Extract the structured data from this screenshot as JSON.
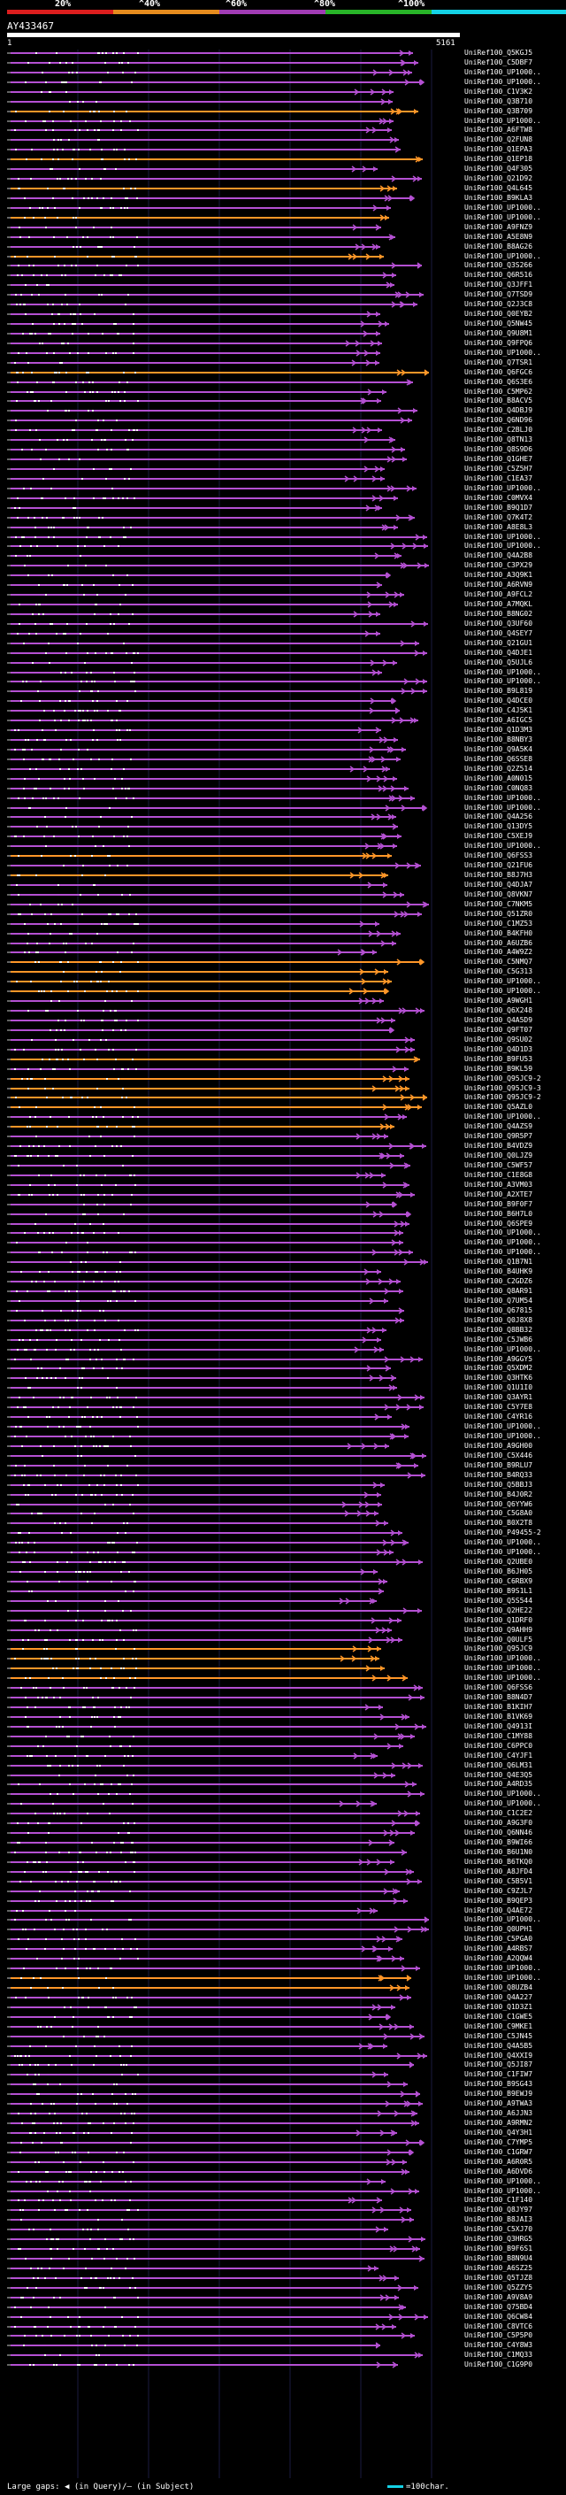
{
  "scale": {
    "labels": [
      "20%",
      "^40%",
      "^60%",
      "^80%",
      "^100%"
    ],
    "colors": [
      "#dc1e1e",
      "#e68c1e",
      "#a03cb4",
      "#28b428",
      "#14d2e6"
    ]
  },
  "query": {
    "id": "AY433467",
    "start": "1",
    "end": "5161"
  },
  "colors": {
    "purple": "#b450d2",
    "orange": "#ff9628",
    "gap": "#646464",
    "tick": "#ffffff"
  },
  "footer": {
    "text": "Large gaps: ◀ (in Query)/— (in Subject)",
    "legend": "=100char."
  },
  "hits": [
    {
      "id": "UniRef100_Q5KGJ5",
      "c": "p"
    },
    {
      "id": "UniRef100_C5DBF7",
      "c": "p"
    },
    {
      "id": "UniRef100_UP1000..",
      "c": "p"
    },
    {
      "id": "UniRef100_UP1000..",
      "c": "p"
    },
    {
      "id": "UniRef100_C1V3K2",
      "c": "p"
    },
    {
      "id": "UniRef100_Q3B710",
      "c": "p"
    },
    {
      "id": "UniRef100_Q3B709",
      "c": "o"
    },
    {
      "id": "UniRef100_UP1000..",
      "c": "p"
    },
    {
      "id": "UniRef100_A6FTW8",
      "c": "p"
    },
    {
      "id": "UniRef100_Q2FUN8",
      "c": "p"
    },
    {
      "id": "UniRef100_Q1EPA3",
      "c": "p"
    },
    {
      "id": "UniRef100_Q1EP18",
      "c": "o"
    },
    {
      "id": "UniRef100_Q4F305",
      "c": "p"
    },
    {
      "id": "UniRef100_Q21D92",
      "c": "p"
    },
    {
      "id": "UniRef100_Q4L645",
      "c": "o"
    },
    {
      "id": "UniRef100_B9KLA3",
      "c": "p"
    },
    {
      "id": "UniRef100_UP1000..",
      "c": "p"
    },
    {
      "id": "UniRef100_UP1000..",
      "c": "o"
    },
    {
      "id": "UniRef100_A9FNZ9",
      "c": "p"
    },
    {
      "id": "UniRef100_A5E8N9",
      "c": "p"
    },
    {
      "id": "UniRef100_B8AG26",
      "c": "p"
    },
    {
      "id": "UniRef100_UP1000..",
      "c": "o"
    },
    {
      "id": "UniRef100_Q3S266",
      "c": "p"
    },
    {
      "id": "UniRef100_Q6R516",
      "c": "p"
    },
    {
      "id": "UniRef100_Q3JFF1",
      "c": "p"
    },
    {
      "id": "UniRef100_Q7TSD9",
      "c": "p"
    },
    {
      "id": "UniRef100_Q2J3C8",
      "c": "p"
    },
    {
      "id": "UniRef100_Q0EYB2",
      "c": "p"
    },
    {
      "id": "UniRef100_Q5NW45",
      "c": "p"
    },
    {
      "id": "UniRef100_Q9U8M1",
      "c": "p"
    },
    {
      "id": "UniRef100_Q9FPQ6",
      "c": "p"
    },
    {
      "id": "UniRef100_UP1000..",
      "c": "p"
    },
    {
      "id": "UniRef100_Q7TSR1",
      "c": "p"
    },
    {
      "id": "UniRef100_Q6FGC6",
      "c": "o"
    },
    {
      "id": "UniRef100_Q6S3E6",
      "c": "p"
    },
    {
      "id": "UniRef100_C5MP62",
      "c": "p"
    },
    {
      "id": "UniRef100_B8ACV5",
      "c": "p"
    },
    {
      "id": "UniRef100_Q4DBJ9",
      "c": "p"
    },
    {
      "id": "UniRef100_Q6ND96",
      "c": "p"
    },
    {
      "id": "UniRef100_C2BLJ0",
      "c": "p"
    },
    {
      "id": "UniRef100_Q8TN13",
      "c": "p"
    },
    {
      "id": "UniRef100_Q8S9D6",
      "c": "p"
    },
    {
      "id": "UniRef100_Q1GHE7",
      "c": "p"
    },
    {
      "id": "UniRef100_C5Z5H7",
      "c": "p"
    },
    {
      "id": "UniRef100_C1EA37",
      "c": "p"
    },
    {
      "id": "UniRef100_UP1000..",
      "c": "p"
    },
    {
      "id": "UniRef100_C0MVX4",
      "c": "p"
    },
    {
      "id": "UniRef100_B9Q1D7",
      "c": "p"
    },
    {
      "id": "UniRef100_Q7K4T2",
      "c": "p"
    },
    {
      "id": "UniRef100_A8E8L3",
      "c": "p"
    },
    {
      "id": "UniRef100_UP1000..",
      "c": "p"
    },
    {
      "id": "UniRef100_UP1000..",
      "c": "p"
    },
    {
      "id": "UniRef100_Q4A2B8",
      "c": "p"
    },
    {
      "id": "UniRef100_C3PX29",
      "c": "p"
    },
    {
      "id": "UniRef100_A3Q9K1",
      "c": "p"
    },
    {
      "id": "UniRef100_A6RVN9",
      "c": "p"
    },
    {
      "id": "UniRef100_A9FCL2",
      "c": "p"
    },
    {
      "id": "UniRef100_A7MQKL",
      "c": "p"
    },
    {
      "id": "UniRef100_B8NG02",
      "c": "p"
    },
    {
      "id": "UniRef100_Q3UF60",
      "c": "p"
    },
    {
      "id": "UniRef100_Q4SEY7",
      "c": "p"
    },
    {
      "id": "UniRef100_Q21GU1",
      "c": "p"
    },
    {
      "id": "UniRef100_Q4DJE1",
      "c": "p"
    },
    {
      "id": "UniRef100_Q5UJL6",
      "c": "p"
    },
    {
      "id": "UniRef100_UP1000..",
      "c": "p"
    },
    {
      "id": "UniRef100_UP1000..",
      "c": "p"
    },
    {
      "id": "UniRef100_B9L819",
      "c": "p"
    },
    {
      "id": "UniRef100_Q4DCE0",
      "c": "p"
    },
    {
      "id": "UniRef100_C4J5K1",
      "c": "p"
    },
    {
      "id": "UniRef100_A6IGC5",
      "c": "p"
    },
    {
      "id": "UniRef100_Q1D3M3",
      "c": "p"
    },
    {
      "id": "UniRef100_B8NBY3",
      "c": "p"
    },
    {
      "id": "UniRef100_Q9A5K4",
      "c": "p"
    },
    {
      "id": "UniRef100_Q6SSE8",
      "c": "p"
    },
    {
      "id": "UniRef100_Q2Z514",
      "c": "p"
    },
    {
      "id": "UniRef100_A0N015",
      "c": "p"
    },
    {
      "id": "UniRef100_C0NQ83",
      "c": "p"
    },
    {
      "id": "UniRef100_UP1000..",
      "c": "p"
    },
    {
      "id": "UniRef100_UP1000..",
      "c": "p"
    },
    {
      "id": "UniRef100_Q4A256",
      "c": "p"
    },
    {
      "id": "UniRef100_Q13DY5",
      "c": "p"
    },
    {
      "id": "UniRef100_C5XEJ9",
      "c": "p"
    },
    {
      "id": "UniRef100_UP1000..",
      "c": "p"
    },
    {
      "id": "UniRef100_Q6FSS3",
      "c": "o"
    },
    {
      "id": "UniRef100_Q21FU6",
      "c": "p"
    },
    {
      "id": "UniRef100_B8J7H3",
      "c": "o"
    },
    {
      "id": "UniRef100_Q4DJA7",
      "c": "p"
    },
    {
      "id": "UniRef100_Q8VKN7",
      "c": "p"
    },
    {
      "id": "UniRef100_C7NKM5",
      "c": "p"
    },
    {
      "id": "UniRef100_Q51ZR0",
      "c": "p"
    },
    {
      "id": "UniRef100_C1MZ53",
      "c": "p"
    },
    {
      "id": "UniRef100_B4KFH0",
      "c": "p"
    },
    {
      "id": "UniRef100_A6UZB6",
      "c": "p"
    },
    {
      "id": "UniRef100_A4W9Z2",
      "c": "p"
    },
    {
      "id": "UniRef100_C5NMQ7",
      "c": "o"
    },
    {
      "id": "UniRef100_C5G313",
      "c": "o"
    },
    {
      "id": "UniRef100_UP1000..",
      "c": "o"
    },
    {
      "id": "UniRef100_UP1000..",
      "c": "o"
    },
    {
      "id": "UniRef100_A9WGH1",
      "c": "p"
    },
    {
      "id": "UniRef100_Q6X248",
      "c": "p"
    },
    {
      "id": "UniRef100_Q4A5D9",
      "c": "p"
    },
    {
      "id": "UniRef100_Q9FT07",
      "c": "p"
    },
    {
      "id": "UniRef100_Q9SU02",
      "c": "p"
    },
    {
      "id": "UniRef100_Q4D1D3",
      "c": "p"
    },
    {
      "id": "UniRef100_B9FU53",
      "c": "o"
    },
    {
      "id": "UniRef100_B9KL59",
      "c": "p"
    },
    {
      "id": "UniRef100_Q95JC9-2",
      "c": "o"
    },
    {
      "id": "UniRef100_Q95JC9-3",
      "c": "o"
    },
    {
      "id": "UniRef100_Q95JC9-2",
      "c": "o"
    },
    {
      "id": "UniRef100_Q5AZL0",
      "c": "o"
    },
    {
      "id": "UniRef100_UP1000..",
      "c": "p"
    },
    {
      "id": "UniRef100_Q4AZS9",
      "c": "o"
    },
    {
      "id": "UniRef100_Q9R5P7",
      "c": "p"
    },
    {
      "id": "UniRef100_B4VDZ9",
      "c": "p"
    },
    {
      "id": "UniRef100_Q0LJZ9",
      "c": "p"
    },
    {
      "id": "UniRef100_C5WF57",
      "c": "p"
    },
    {
      "id": "UniRef100_C1E8G8",
      "c": "p"
    },
    {
      "id": "UniRef100_A3VM03",
      "c": "p"
    },
    {
      "id": "UniRef100_A2XTE7",
      "c": "p"
    },
    {
      "id": "UniRef100_B9F0F7",
      "c": "p"
    },
    {
      "id": "UniRef100_B6H7L0",
      "c": "p"
    },
    {
      "id": "UniRef100_Q6SPE9",
      "c": "p"
    },
    {
      "id": "UniRef100_UP1000..",
      "c": "p"
    },
    {
      "id": "UniRef100_UP1000..",
      "c": "p"
    },
    {
      "id": "UniRef100_UP1000..",
      "c": "p"
    },
    {
      "id": "UniRef100_Q1B7N1",
      "c": "p"
    },
    {
      "id": "UniRef100_B4UHK9",
      "c": "p"
    },
    {
      "id": "UniRef100_C2GDZ6",
      "c": "p"
    },
    {
      "id": "UniRef100_Q8AR91",
      "c": "p"
    },
    {
      "id": "UniRef100_Q7UM54",
      "c": "p"
    },
    {
      "id": "UniRef100_Q67815",
      "c": "p"
    },
    {
      "id": "UniRef100_Q0J8X8",
      "c": "p"
    },
    {
      "id": "UniRef100_Q8BB32",
      "c": "p"
    },
    {
      "id": "UniRef100_C5JWB6",
      "c": "p"
    },
    {
      "id": "UniRef100_UP1000..",
      "c": "p"
    },
    {
      "id": "UniRef100_A9GGY5",
      "c": "p"
    },
    {
      "id": "UniRef100_Q5XDM2",
      "c": "p"
    },
    {
      "id": "UniRef100_Q3HTK6",
      "c": "p"
    },
    {
      "id": "UniRef100_Q1U1I0",
      "c": "p"
    },
    {
      "id": "UniRef100_Q3AYR1",
      "c": "p"
    },
    {
      "id": "UniRef100_C5Y7E8",
      "c": "p"
    },
    {
      "id": "UniRef100_C4YR16",
      "c": "p"
    },
    {
      "id": "UniRef100_UP1000..",
      "c": "p"
    },
    {
      "id": "UniRef100_UP1000..",
      "c": "p"
    },
    {
      "id": "UniRef100_A9GH00",
      "c": "p"
    },
    {
      "id": "UniRef100_C5X446",
      "c": "p"
    },
    {
      "id": "UniRef100_B9RLU7",
      "c": "p"
    },
    {
      "id": "UniRef100_B4RQ33",
      "c": "p"
    },
    {
      "id": "UniRef100_Q5BBJ3",
      "c": "p"
    },
    {
      "id": "UniRef100_B4J0R2",
      "c": "p"
    },
    {
      "id": "UniRef100_Q6YYW6",
      "c": "p"
    },
    {
      "id": "UniRef100_C5G8A0",
      "c": "p"
    },
    {
      "id": "UniRef100_B0X2T8",
      "c": "p"
    },
    {
      "id": "UniRef100_P49455-2",
      "c": "p"
    },
    {
      "id": "UniRef100_UP1000..",
      "c": "p"
    },
    {
      "id": "UniRef100_UP1000..",
      "c": "p"
    },
    {
      "id": "UniRef100_Q2UBE0",
      "c": "p"
    },
    {
      "id": "UniRef100_B6JH05",
      "c": "p"
    },
    {
      "id": "UniRef100_C6RBX9",
      "c": "p"
    },
    {
      "id": "UniRef100_B9S1L1",
      "c": "p"
    },
    {
      "id": "UniRef100_Q5S544",
      "c": "p"
    },
    {
      "id": "UniRef100_Q2HE22",
      "c": "p"
    },
    {
      "id": "UniRef100_Q1DRF0",
      "c": "p"
    },
    {
      "id": "UniRef100_Q9AHH9",
      "c": "p"
    },
    {
      "id": "UniRef100_Q0ULF5",
      "c": "p"
    },
    {
      "id": "UniRef100_Q95JC9",
      "c": "o"
    },
    {
      "id": "UniRef100_UP1000..",
      "c": "o"
    },
    {
      "id": "UniRef100_UP1000..",
      "c": "o"
    },
    {
      "id": "UniRef100_UP1000..",
      "c": "o"
    },
    {
      "id": "UniRef100_Q6FSS6",
      "c": "p"
    },
    {
      "id": "UniRef100_B8N4D7",
      "c": "p"
    },
    {
      "id": "UniRef100_B1KIH7",
      "c": "p"
    },
    {
      "id": "UniRef100_B1VK69",
      "c": "p"
    },
    {
      "id": "UniRef100_Q4913I",
      "c": "p"
    },
    {
      "id": "UniRef100_C1MY88",
      "c": "p"
    },
    {
      "id": "UniRef100_C6PPC0",
      "c": "p"
    },
    {
      "id": "UniRef100_C4YJF1",
      "c": "p"
    },
    {
      "id": "UniRef100_Q6LM31",
      "c": "p"
    },
    {
      "id": "UniRef100_Q4E3Q5",
      "c": "p"
    },
    {
      "id": "UniRef100_A4RD35",
      "c": "p"
    },
    {
      "id": "UniRef100_UP1000..",
      "c": "p"
    },
    {
      "id": "UniRef100_UP1000..",
      "c": "p"
    },
    {
      "id": "UniRef100_C1C2E2",
      "c": "p"
    },
    {
      "id": "UniRef100_A9G3F0",
      "c": "p"
    },
    {
      "id": "UniRef100_Q6NN46",
      "c": "p"
    },
    {
      "id": "UniRef100_B9WI66",
      "c": "p"
    },
    {
      "id": "UniRef100_B6U1N0",
      "c": "p"
    },
    {
      "id": "UniRef100_B6TKQ0",
      "c": "p"
    },
    {
      "id": "UniRef100_A8JFD4",
      "c": "p"
    },
    {
      "id": "UniRef100_C5B5V1",
      "c": "p"
    },
    {
      "id": "UniRef100_C9ZJL7",
      "c": "p"
    },
    {
      "id": "UniRef100_B9QEP3",
      "c": "p"
    },
    {
      "id": "UniRef100_Q4AE72",
      "c": "p"
    },
    {
      "id": "UniRef100_UP1000..",
      "c": "p"
    },
    {
      "id": "UniRef100_Q0UPH1",
      "c": "p"
    },
    {
      "id": "UniRef100_C5PGA0",
      "c": "p"
    },
    {
      "id": "UniRef100_A4RBS7",
      "c": "p"
    },
    {
      "id": "UniRef100_A2QQW4",
      "c": "p"
    },
    {
      "id": "UniRef100_UP1000..",
      "c": "p"
    },
    {
      "id": "UniRef100_UP1000..",
      "c": "o"
    },
    {
      "id": "UniRef100_Q8UZB4",
      "c": "o"
    },
    {
      "id": "UniRef100_Q4A227",
      "c": "p"
    },
    {
      "id": "UniRef100_Q1D3Z1",
      "c": "p"
    },
    {
      "id": "UniRef100_C1GWE5",
      "c": "p"
    },
    {
      "id": "UniRef100_C9MKE1",
      "c": "p"
    },
    {
      "id": "UniRef100_C5JN45",
      "c": "p"
    },
    {
      "id": "UniRef100_Q4A5B5",
      "c": "p"
    },
    {
      "id": "UniRef100_Q4XXI9",
      "c": "p"
    },
    {
      "id": "UniRef100_Q5JI87",
      "c": "p"
    },
    {
      "id": "UniRef100_C1FIW7",
      "c": "p"
    },
    {
      "id": "UniRef100_B9SG43",
      "c": "p"
    },
    {
      "id": "UniRef100_B9EWJ9",
      "c": "p"
    },
    {
      "id": "UniRef100_A9TWA3",
      "c": "p"
    },
    {
      "id": "UniRef100_A6JJN3",
      "c": "p"
    },
    {
      "id": "UniRef100_A9RMN2",
      "c": "p"
    },
    {
      "id": "UniRef100_Q4Y3H1",
      "c": "p"
    },
    {
      "id": "UniRef100_C7YMP5",
      "c": "p"
    },
    {
      "id": "UniRef100_C1GRW7",
      "c": "p"
    },
    {
      "id": "UniRef100_A6R0R5",
      "c": "p"
    },
    {
      "id": "UniRef100_A6DVD6",
      "c": "p"
    },
    {
      "id": "UniRef100_UP1000..",
      "c": "p"
    },
    {
      "id": "UniRef100_UP1000..",
      "c": "p"
    },
    {
      "id": "UniRef100_C1F140",
      "c": "p"
    },
    {
      "id": "UniRef100_Q8JY97",
      "c": "p"
    },
    {
      "id": "UniRef100_B8JAI3",
      "c": "p"
    },
    {
      "id": "UniRef100_C5XJ70",
      "c": "p"
    },
    {
      "id": "UniRef100_Q3HRG5",
      "c": "p"
    },
    {
      "id": "UniRef100_B9F6S1",
      "c": "p"
    },
    {
      "id": "UniRef100_B8N9U4",
      "c": "p"
    },
    {
      "id": "UniRef100_A6SZ25",
      "c": "p"
    },
    {
      "id": "UniRef100_Q5TJZ8",
      "c": "p"
    },
    {
      "id": "UniRef100_Q5ZZY5",
      "c": "p"
    },
    {
      "id": "UniRef100_A9V8A9",
      "c": "p"
    },
    {
      "id": "UniRef100_Q75BD4",
      "c": "p"
    },
    {
      "id": "UniRef100_Q6CW84",
      "c": "p"
    },
    {
      "id": "UniRef100_C8VTC6",
      "c": "p"
    },
    {
      "id": "UniRef100_C5P5P0",
      "c": "p"
    },
    {
      "id": "UniRef100_C4Y8W3",
      "c": "p"
    },
    {
      "id": "UniRef100_C1MQ33",
      "c": "p"
    },
    {
      "id": "UniRef100_C1G9P0",
      "c": "p"
    }
  ]
}
